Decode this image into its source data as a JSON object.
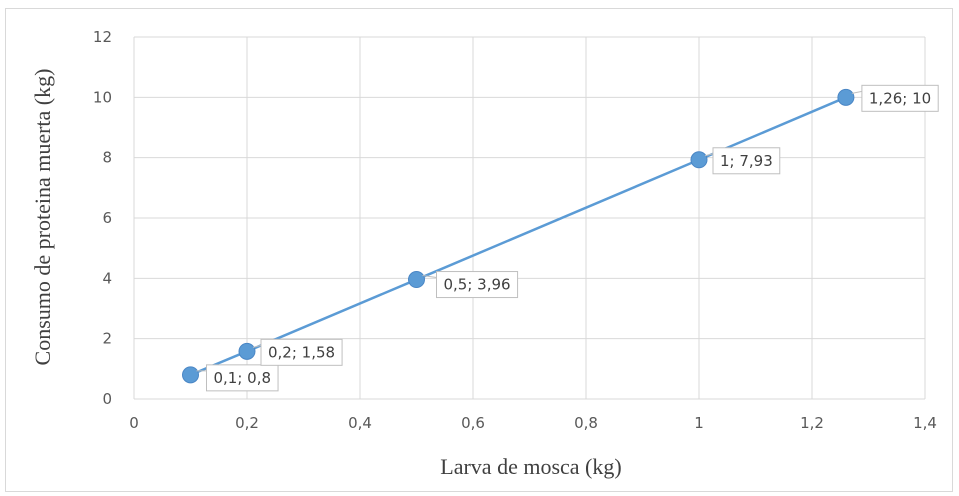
{
  "chart_data": {
    "type": "scatter",
    "xlabel": "Larva de mosca (kg)",
    "ylabel": "Consumo de proteina muerta (kg)",
    "xlim": [
      0,
      1.4
    ],
    "ylim": [
      0,
      12
    ],
    "x_ticks": [
      "0",
      "0,2",
      "0,4",
      "0,6",
      "0,8",
      "1",
      "1,2",
      "1,4"
    ],
    "y_ticks": [
      "0",
      "2",
      "4",
      "6",
      "8",
      "10",
      "12"
    ],
    "grid": true,
    "series": [
      {
        "color": "#5b9bd5",
        "points": [
          {
            "x": 0.1,
            "y": 0.8,
            "label": "0,1; 0,8"
          },
          {
            "x": 0.2,
            "y": 1.58,
            "label": "0,2; 1,58"
          },
          {
            "x": 0.5,
            "y": 3.96,
            "label": "0,5; 3,96"
          },
          {
            "x": 1.0,
            "y": 7.93,
            "label": "1; 7,93"
          },
          {
            "x": 1.26,
            "y": 10,
            "label": "1,26; 10"
          }
        ]
      }
    ]
  }
}
